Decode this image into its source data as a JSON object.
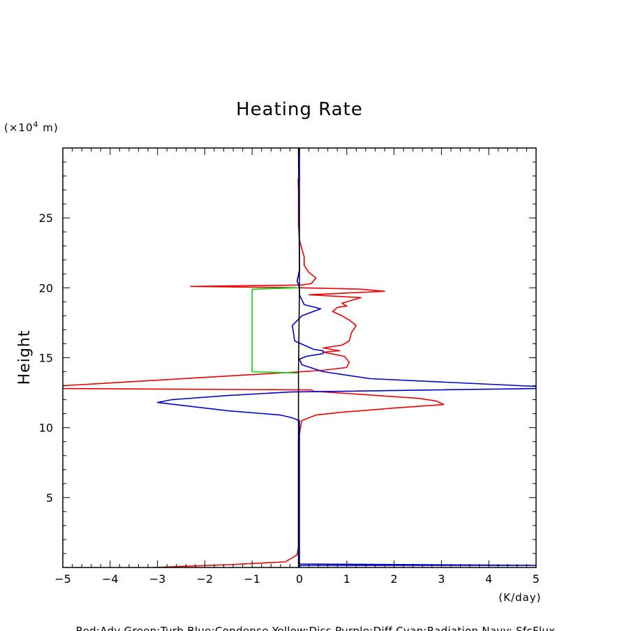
{
  "chart_data": {
    "type": "line",
    "title": "Heating Rate",
    "xlabel": "(K/day)",
    "ylabel": "Height",
    "y_unit_prefix": "(×10",
    "y_unit_exp": "4",
    "y_unit_suffix": " m)",
    "legend_text": "Red:Adv  Green:Turb  Blue:Condense  Yellow:Diss  Purple:Diff  Cyan:Radiation  Navy: SfcFlux",
    "xlim": [
      -5,
      5
    ],
    "ylim": [
      0,
      30
    ],
    "xticks": [
      -5,
      -4,
      -3,
      -2,
      -1,
      0,
      1,
      2,
      3,
      4,
      5
    ],
    "xtick_labels": [
      "−5",
      "−4",
      "−3",
      "−2",
      "−1",
      "0",
      "1",
      "2",
      "3",
      "4",
      "5"
    ],
    "yticks": [
      5,
      10,
      15,
      20,
      25
    ],
    "ytick_labels": [
      "5",
      "10",
      "15",
      "20",
      "25"
    ],
    "grid": false,
    "series": [
      {
        "color": "#ee0000",
        "points": [
          [
            -3.1,
            0.0
          ],
          [
            -1.5,
            0.2
          ],
          [
            -0.3,
            0.4
          ],
          [
            -0.2,
            0.6
          ],
          [
            -0.05,
            0.9
          ],
          [
            -0.02,
            1.5
          ],
          [
            -0.02,
            5
          ],
          [
            -0.02,
            9
          ],
          [
            0.02,
            10.0
          ],
          [
            0.05,
            10.5
          ],
          [
            0.35,
            10.9
          ],
          [
            0.9,
            11.1
          ],
          [
            2.0,
            11.4
          ],
          [
            3.05,
            11.65
          ],
          [
            2.9,
            11.9
          ],
          [
            2.5,
            12.1
          ],
          [
            1.2,
            12.4
          ],
          [
            0.3,
            12.6
          ],
          [
            0.25,
            12.7
          ],
          [
            -5.0,
            12.8
          ],
          [
            -5.0,
            13.0
          ],
          [
            0.05,
            14.0
          ],
          [
            0.5,
            14.1
          ],
          [
            1.0,
            14.3
          ],
          [
            1.05,
            14.7
          ],
          [
            0.95,
            15.1
          ],
          [
            0.5,
            15.4
          ],
          [
            0.85,
            15.5
          ],
          [
            0.5,
            15.7
          ],
          [
            0.9,
            15.9
          ],
          [
            1.05,
            16.2
          ],
          [
            1.1,
            16.8
          ],
          [
            1.2,
            17.3
          ],
          [
            1.05,
            17.7
          ],
          [
            0.9,
            18.0
          ],
          [
            0.7,
            18.3
          ],
          [
            0.8,
            18.6
          ],
          [
            1.0,
            18.7
          ],
          [
            0.9,
            18.9
          ],
          [
            1.1,
            19.1
          ],
          [
            1.3,
            19.3
          ],
          [
            0.2,
            19.5
          ],
          [
            1.8,
            19.75
          ],
          [
            1.3,
            19.9
          ],
          [
            0.05,
            20.0
          ],
          [
            -2.3,
            20.1
          ],
          [
            0.05,
            20.2
          ],
          [
            0.25,
            20.3
          ],
          [
            0.3,
            20.5
          ],
          [
            0.35,
            20.7
          ],
          [
            0.2,
            21.1
          ],
          [
            0.1,
            21.6
          ],
          [
            0.1,
            22.2
          ],
          [
            0.05,
            22.8
          ],
          [
            0.0,
            23.4
          ],
          [
            -0.02,
            24.5
          ],
          [
            -0.02,
            26.0
          ],
          [
            -0.02,
            27.0
          ],
          [
            -0.03,
            27.8
          ]
        ]
      },
      {
        "color": "#00dd00",
        "points": [
          [
            -0.02,
            13.9
          ],
          [
            -1.0,
            14.0
          ],
          [
            -1.0,
            14.2
          ],
          [
            -1.0,
            19.9
          ],
          [
            -0.02,
            20.0
          ]
        ]
      },
      {
        "color": "#0000cc",
        "points": [
          [
            0.0,
            0.0
          ],
          [
            0.02,
            0.15
          ],
          [
            2.0,
            0.15
          ],
          [
            5.0,
            0.15
          ],
          [
            0.0,
            0.25
          ],
          [
            0.0,
            5
          ],
          [
            0.0,
            10.5
          ],
          [
            -0.15,
            10.7
          ],
          [
            -0.4,
            10.9
          ],
          [
            -1.5,
            11.2
          ],
          [
            -3.0,
            11.8
          ],
          [
            -2.7,
            12.0
          ],
          [
            -1.5,
            12.3
          ],
          [
            -0.2,
            12.55
          ],
          [
            5.0,
            12.8
          ],
          [
            5.0,
            12.95
          ],
          [
            1.5,
            13.5
          ],
          [
            0.5,
            14.0
          ],
          [
            0.05,
            14.5
          ],
          [
            0.0,
            14.9
          ],
          [
            0.15,
            15.1
          ],
          [
            0.5,
            15.3
          ],
          [
            0.5,
            15.5
          ],
          [
            0.3,
            15.6
          ],
          [
            -0.1,
            16.2
          ],
          [
            -0.15,
            17.3
          ],
          [
            0.05,
            18.0
          ],
          [
            0.45,
            18.5
          ],
          [
            0.1,
            18.8
          ],
          [
            0.0,
            19.5
          ],
          [
            0.0,
            30.0
          ]
        ]
      },
      {
        "color": "#000000",
        "points": [
          [
            -0.02,
            0.0
          ],
          [
            -0.02,
            14.0
          ],
          [
            0.0,
            20.0
          ],
          [
            -0.05,
            20.5
          ],
          [
            -0.02,
            20.9
          ],
          [
            0.0,
            21.3
          ],
          [
            -0.02,
            30.0
          ]
        ]
      }
    ]
  }
}
